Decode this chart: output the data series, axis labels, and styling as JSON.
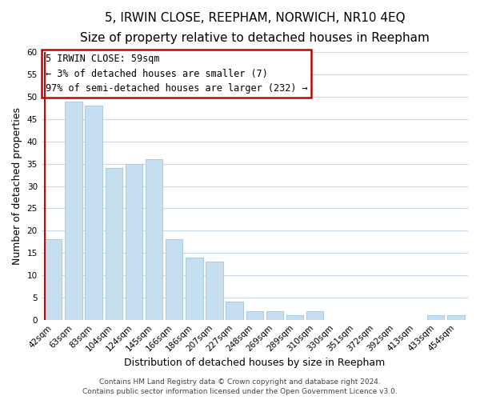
{
  "title": "5, IRWIN CLOSE, REEPHAM, NORWICH, NR10 4EQ",
  "subtitle": "Size of property relative to detached houses in Reepham",
  "xlabel": "Distribution of detached houses by size in Reepham",
  "ylabel": "Number of detached properties",
  "bar_labels": [
    "42sqm",
    "63sqm",
    "83sqm",
    "104sqm",
    "124sqm",
    "145sqm",
    "166sqm",
    "186sqm",
    "207sqm",
    "227sqm",
    "248sqm",
    "269sqm",
    "289sqm",
    "310sqm",
    "330sqm",
    "351sqm",
    "372sqm",
    "392sqm",
    "413sqm",
    "433sqm",
    "454sqm"
  ],
  "bar_values": [
    18,
    49,
    48,
    34,
    35,
    36,
    18,
    14,
    13,
    4,
    2,
    2,
    1,
    2,
    0,
    0,
    0,
    0,
    0,
    1,
    1
  ],
  "bar_color": "#c5dff0",
  "bar_edge_color": "#a8cce0",
  "highlight_edge_color": "#cc0000",
  "ylim": [
    0,
    60
  ],
  "yticks": [
    0,
    5,
    10,
    15,
    20,
    25,
    30,
    35,
    40,
    45,
    50,
    55,
    60
  ],
  "annotation_line1": "5 IRWIN CLOSE: 59sqm",
  "annotation_line2": "← 3% of detached houses are smaller (7)",
  "annotation_line3": "97% of semi-detached houses are larger (232) →",
  "footer_line1": "Contains HM Land Registry data © Crown copyright and database right 2024.",
  "footer_line2": "Contains public sector information licensed under the Open Government Licence v3.0.",
  "bg_color": "#ffffff",
  "grid_color": "#c8d8e8",
  "title_fontsize": 11,
  "subtitle_fontsize": 9.5,
  "axis_label_fontsize": 9,
  "tick_fontsize": 7.5,
  "footer_fontsize": 6.5,
  "annotation_fontsize": 8.5
}
